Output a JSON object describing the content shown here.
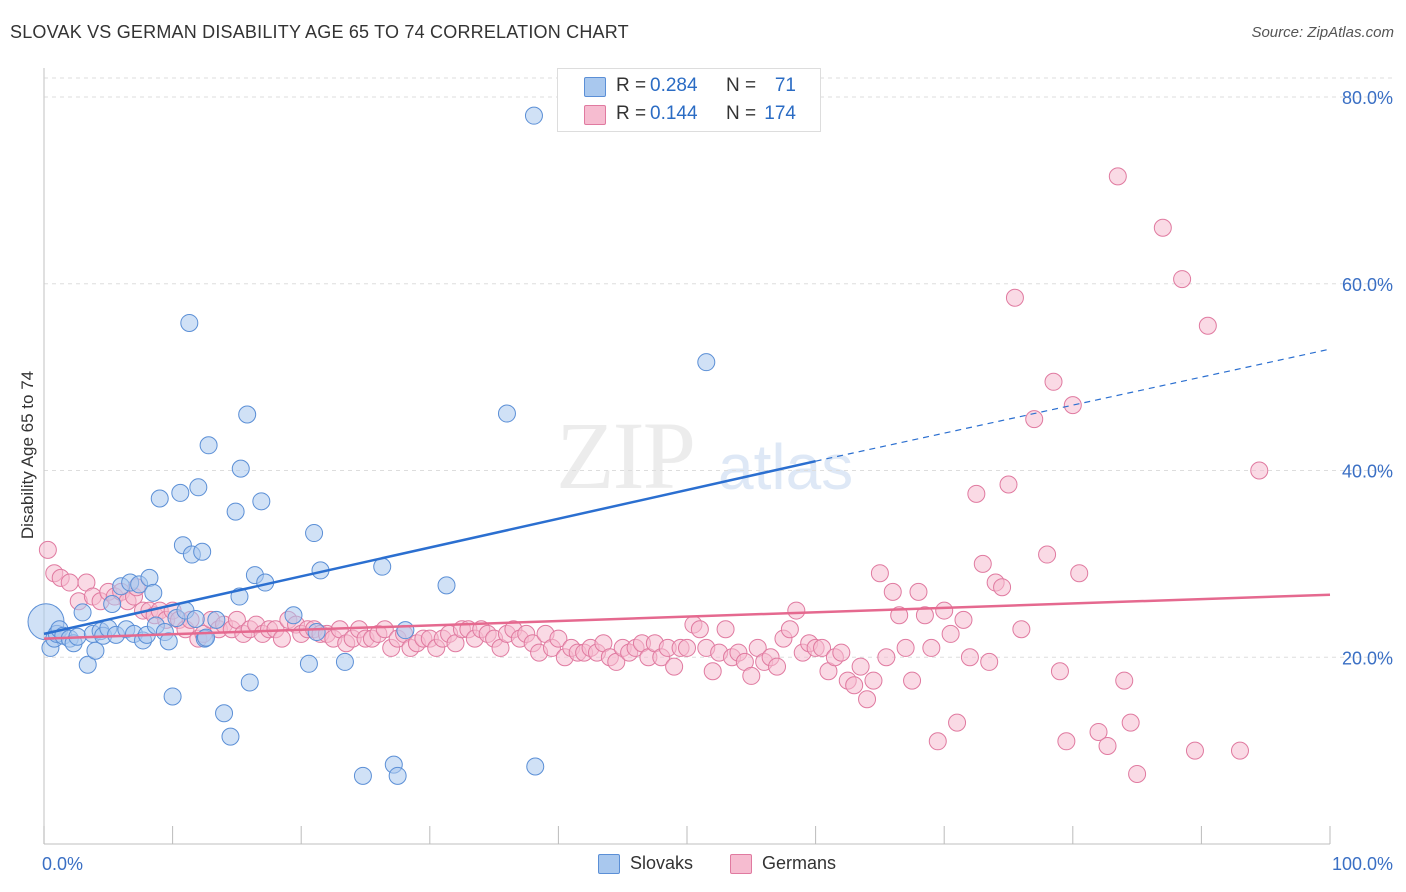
{
  "title": "SLOVAK VS GERMAN DISABILITY AGE 65 TO 74 CORRELATION CHART",
  "source": "Source: ZipAtlas.com",
  "watermark": {
    "zip": "ZIP",
    "atlas": "atlas"
  },
  "stats": [
    {
      "r_label": "R =",
      "r_value": "0.284",
      "n_label": "N =",
      "n_value": "71"
    },
    {
      "r_label": "R =",
      "r_value": "0.144",
      "n_label": "N =",
      "n_value": "174"
    }
  ],
  "legend": [
    {
      "label": "Slovaks"
    },
    {
      "label": "Germans"
    }
  ],
  "colors": {
    "slovak_fill": "#a9c8ee",
    "slovak_stroke": "#5b8fd6",
    "slovak_line": "#2b6fd0",
    "german_fill": "#f6bcd0",
    "german_stroke": "#e07aa0",
    "german_line": "#e5698f",
    "grid": "#dddddd",
    "tick_text": "#3a6fc4"
  },
  "chart_data": {
    "type": "scatter",
    "title": "SLOVAK VS GERMAN DISABILITY AGE 65 TO 74 CORRELATION CHART",
    "xlabel": "",
    "ylabel": "Disability Age 65 to 74",
    "xlim": [
      0,
      100
    ],
    "ylim": [
      0,
      82
    ],
    "x_ticks": [
      0,
      10,
      20,
      30,
      40,
      50,
      60,
      70,
      80,
      90,
      100
    ],
    "x_tick_labels": [
      {
        "value": 0,
        "label": "0.0%"
      },
      {
        "value": 100,
        "label": "100.0%"
      }
    ],
    "y_ticks": [
      {
        "value": 20,
        "label": "20.0%"
      },
      {
        "value": 40,
        "label": "40.0%"
      },
      {
        "value": 60,
        "label": "60.0%"
      },
      {
        "value": 80,
        "label": "80.0%"
      }
    ],
    "grid": true,
    "series": [
      {
        "name": "Slovaks",
        "r": 0.284,
        "n": 71,
        "trend": {
          "x0": 0,
          "y0": 22.5,
          "x1": 60,
          "y1": 41,
          "dash_to_x": 100,
          "dash_to_y": 53
        },
        "points": [
          [
            0.2,
            23.8
          ],
          [
            0.5,
            21
          ],
          [
            0.8,
            22
          ],
          [
            1,
            22.5
          ],
          [
            1.2,
            23
          ],
          [
            1.5,
            22.3
          ],
          [
            2,
            22
          ],
          [
            2.3,
            21.5
          ],
          [
            2.6,
            22.2
          ],
          [
            3,
            24.8
          ],
          [
            3.4,
            19.2
          ],
          [
            3.8,
            22.5
          ],
          [
            4,
            20.7
          ],
          [
            4.4,
            22.8
          ],
          [
            4.6,
            22.3
          ],
          [
            5,
            23.1
          ],
          [
            5.3,
            25.7
          ],
          [
            5.6,
            22.4
          ],
          [
            6,
            27.6
          ],
          [
            6.4,
            23
          ],
          [
            6.7,
            28
          ],
          [
            7,
            22.5
          ],
          [
            7.4,
            27.8
          ],
          [
            7.7,
            21.8
          ],
          [
            8,
            22.4
          ],
          [
            8.2,
            28.5
          ],
          [
            8.5,
            26.9
          ],
          [
            8.7,
            23.4
          ],
          [
            9,
            37
          ],
          [
            9.4,
            22.7
          ],
          [
            9.7,
            21.7
          ],
          [
            10,
            15.8
          ],
          [
            10.3,
            24.2
          ],
          [
            10.6,
            37.6
          ],
          [
            10.8,
            32
          ],
          [
            11,
            25
          ],
          [
            11.3,
            55.8
          ],
          [
            11.5,
            31
          ],
          [
            11.8,
            24.1
          ],
          [
            12,
            38.2
          ],
          [
            12.3,
            31.3
          ],
          [
            12.5,
            22
          ],
          [
            12.8,
            42.7
          ],
          [
            13.4,
            24
          ],
          [
            14,
            14
          ],
          [
            14.5,
            11.5
          ],
          [
            14.9,
            35.6
          ],
          [
            15.2,
            26.5
          ],
          [
            15.3,
            40.2
          ],
          [
            15.8,
            46
          ],
          [
            16,
            17.3
          ],
          [
            16.4,
            28.8
          ],
          [
            16.9,
            36.7
          ],
          [
            17.2,
            28
          ],
          [
            19.4,
            24.5
          ],
          [
            20.6,
            19.3
          ],
          [
            21,
            33.3
          ],
          [
            21.2,
            22.7
          ],
          [
            21.5,
            29.3
          ],
          [
            23.4,
            19.5
          ],
          [
            24.8,
            7.3
          ],
          [
            26.3,
            29.7
          ],
          [
            27.2,
            8.5
          ],
          [
            27.5,
            7.3
          ],
          [
            28.1,
            22.9
          ],
          [
            31.3,
            27.7
          ],
          [
            36,
            46.1
          ],
          [
            38.1,
            78
          ],
          [
            38.2,
            8.3
          ],
          [
            51.5,
            51.6
          ],
          [
            12.6,
            22.1
          ]
        ]
      },
      {
        "name": "Germans",
        "r": 0.144,
        "n": 174,
        "trend": {
          "x0": 0,
          "y0": 22,
          "x1": 100,
          "y1": 26.7
        },
        "points": [
          [
            0.3,
            31.5
          ],
          [
            0.8,
            29
          ],
          [
            1.3,
            28.5
          ],
          [
            2,
            28
          ],
          [
            2.7,
            26
          ],
          [
            3.3,
            28
          ],
          [
            3.8,
            26.5
          ],
          [
            4.4,
            26
          ],
          [
            5,
            27
          ],
          [
            5.5,
            26.5
          ],
          [
            6,
            27
          ],
          [
            6.5,
            26
          ],
          [
            7,
            26.5
          ],
          [
            7.2,
            27.5
          ],
          [
            7.7,
            25
          ],
          [
            8.2,
            25
          ],
          [
            8.6,
            24.5
          ],
          [
            9,
            25
          ],
          [
            9.5,
            24
          ],
          [
            10,
            25
          ],
          [
            10.5,
            24
          ],
          [
            11,
            23
          ],
          [
            11.4,
            24
          ],
          [
            12,
            22
          ],
          [
            12.4,
            22.5
          ],
          [
            13,
            24
          ],
          [
            13.6,
            23
          ],
          [
            14,
            23.5
          ],
          [
            14.6,
            23
          ],
          [
            15,
            24
          ],
          [
            15.5,
            22.5
          ],
          [
            16,
            23
          ],
          [
            16.5,
            23.5
          ],
          [
            17,
            22.5
          ],
          [
            17.5,
            23
          ],
          [
            18,
            23
          ],
          [
            18.5,
            22
          ],
          [
            19,
            24
          ],
          [
            19.6,
            23.5
          ],
          [
            20,
            22.5
          ],
          [
            20.5,
            23
          ],
          [
            21,
            23
          ],
          [
            21.5,
            22.5
          ],
          [
            22,
            22.5
          ],
          [
            22.5,
            22
          ],
          [
            23,
            23
          ],
          [
            23.5,
            21.5
          ],
          [
            24,
            22
          ],
          [
            24.5,
            23
          ],
          [
            25,
            22
          ],
          [
            25.5,
            22
          ],
          [
            26,
            22.5
          ],
          [
            26.5,
            23
          ],
          [
            27,
            21
          ],
          [
            27.5,
            22
          ],
          [
            28,
            22.5
          ],
          [
            28.5,
            21
          ],
          [
            29,
            21.5
          ],
          [
            29.5,
            22
          ],
          [
            30,
            22
          ],
          [
            30.5,
            21
          ],
          [
            31,
            22
          ],
          [
            31.5,
            22.5
          ],
          [
            32,
            21.5
          ],
          [
            32.5,
            23
          ],
          [
            33,
            23
          ],
          [
            33.5,
            22
          ],
          [
            34,
            23
          ],
          [
            34.5,
            22.5
          ],
          [
            35,
            22
          ],
          [
            35.5,
            21
          ],
          [
            36,
            22.5
          ],
          [
            36.5,
            23
          ],
          [
            37,
            22
          ],
          [
            37.5,
            22.5
          ],
          [
            38,
            21.5
          ],
          [
            38.5,
            20.5
          ],
          [
            39,
            22.5
          ],
          [
            39.5,
            21
          ],
          [
            40,
            22
          ],
          [
            40.5,
            20
          ],
          [
            41,
            21
          ],
          [
            41.5,
            20.5
          ],
          [
            42,
            20.5
          ],
          [
            42.5,
            21
          ],
          [
            43,
            20.5
          ],
          [
            43.5,
            21.5
          ],
          [
            44,
            20
          ],
          [
            44.5,
            19.5
          ],
          [
            45,
            21
          ],
          [
            45.5,
            20.5
          ],
          [
            46,
            21
          ],
          [
            46.5,
            21.5
          ],
          [
            47,
            20
          ],
          [
            47.5,
            21.5
          ],
          [
            48,
            20
          ],
          [
            48.5,
            21
          ],
          [
            49,
            19
          ],
          [
            49.5,
            21
          ],
          [
            50,
            21
          ],
          [
            50.5,
            23.5
          ],
          [
            51,
            23
          ],
          [
            51.5,
            21
          ],
          [
            52,
            18.5
          ],
          [
            52.5,
            20.5
          ],
          [
            53,
            23
          ],
          [
            53.5,
            20
          ],
          [
            54,
            20.5
          ],
          [
            54.5,
            19.5
          ],
          [
            55,
            18
          ],
          [
            55.5,
            21
          ],
          [
            56,
            19.5
          ],
          [
            56.5,
            20
          ],
          [
            57,
            19
          ],
          [
            57.5,
            22
          ],
          [
            58,
            23
          ],
          [
            58.5,
            25
          ],
          [
            59,
            20.5
          ],
          [
            59.5,
            21.5
          ],
          [
            60,
            21
          ],
          [
            60.5,
            21
          ],
          [
            61,
            18.5
          ],
          [
            61.5,
            20
          ],
          [
            62,
            20.5
          ],
          [
            62.5,
            17.5
          ],
          [
            63,
            17
          ],
          [
            63.5,
            19
          ],
          [
            64,
            15.5
          ],
          [
            64.5,
            17.5
          ],
          [
            65,
            29
          ],
          [
            65.5,
            20
          ],
          [
            66,
            27
          ],
          [
            66.5,
            24.5
          ],
          [
            67,
            21
          ],
          [
            67.5,
            17.5
          ],
          [
            68,
            27
          ],
          [
            68.5,
            24.5
          ],
          [
            69,
            21
          ],
          [
            69.5,
            11
          ],
          [
            70,
            25
          ],
          [
            70.5,
            22.5
          ],
          [
            71,
            13
          ],
          [
            71.5,
            24
          ],
          [
            72,
            20
          ],
          [
            72.5,
            37.5
          ],
          [
            73,
            30
          ],
          [
            73.5,
            19.5
          ],
          [
            74,
            28
          ],
          [
            74.5,
            27.5
          ],
          [
            75,
            38.5
          ],
          [
            75.5,
            58.5
          ],
          [
            76,
            23
          ],
          [
            77,
            45.5
          ],
          [
            78,
            31
          ],
          [
            78.5,
            49.5
          ],
          [
            79,
            18.5
          ],
          [
            79.5,
            11
          ],
          [
            80,
            47
          ],
          [
            80.5,
            29
          ],
          [
            82,
            12
          ],
          [
            82.7,
            10.5
          ],
          [
            83.5,
            71.5
          ],
          [
            84,
            17.5
          ],
          [
            84.5,
            13
          ],
          [
            85,
            7.5
          ],
          [
            87,
            66
          ],
          [
            88.5,
            60.5
          ],
          [
            89.5,
            10
          ],
          [
            90.5,
            55.5
          ],
          [
            93,
            10
          ],
          [
            94.5,
            40
          ]
        ]
      }
    ]
  }
}
